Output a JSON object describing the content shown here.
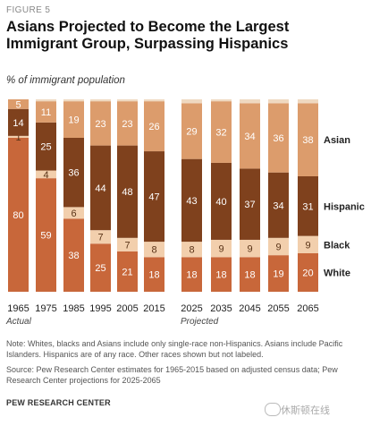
{
  "figure_label": "FIGURE 5",
  "title": "Asians Projected to Become the Largest Immigrant Group, Surpassing Hispanics",
  "subtitle": "% of immigrant population",
  "note": "Note: Whites, blacks and Asians include only single-race non-Hispanics. Asians include Pacific Islanders. Hispanics are of any race. Other races shown but not labeled.",
  "source": "Source: Pew Research Center estimates for 1965-2015 based on adjusted census data; Pew Research Center projections for 2025-2065",
  "organization": "PEW RESEARCH CENTER",
  "watermark": "休斯顿在线",
  "colors": {
    "white": "#c8673a",
    "black": "#f2cfad",
    "hispanic": "#7f411d",
    "asian": "#dc9c6c",
    "other": "#efd9c1"
  },
  "chart_data": {
    "type": "bar",
    "stacked": true,
    "categories": [
      "1965",
      "1975",
      "1985",
      "1995",
      "2005",
      "2015",
      "2025",
      "2035",
      "2045",
      "2055",
      "2065"
    ],
    "groups": [
      {
        "label": "Actual",
        "categories": [
          "1965",
          "1975",
          "1985",
          "1995",
          "2005",
          "2015"
        ]
      },
      {
        "label": "Projected",
        "categories": [
          "2025",
          "2035",
          "2045",
          "2055",
          "2065"
        ]
      }
    ],
    "series": [
      {
        "name": "White",
        "key": "white",
        "values": [
          80,
          59,
          38,
          25,
          21,
          18,
          18,
          18,
          18,
          19,
          20
        ]
      },
      {
        "name": "Black",
        "key": "black",
        "values": [
          1,
          4,
          6,
          7,
          7,
          8,
          8,
          9,
          9,
          9,
          9
        ]
      },
      {
        "name": "Hispanic",
        "key": "hispanic",
        "values": [
          14,
          25,
          36,
          44,
          48,
          47,
          43,
          40,
          37,
          34,
          31
        ]
      },
      {
        "name": "Asian",
        "key": "asian",
        "values": [
          5,
          11,
          19,
          23,
          23,
          26,
          29,
          32,
          34,
          36,
          38
        ]
      },
      {
        "name": "",
        "key": "other",
        "values": [
          0,
          1,
          1,
          1,
          1,
          1,
          2,
          1,
          2,
          2,
          2
        ]
      }
    ],
    "ylim": [
      0,
      100
    ],
    "legend": "right"
  }
}
